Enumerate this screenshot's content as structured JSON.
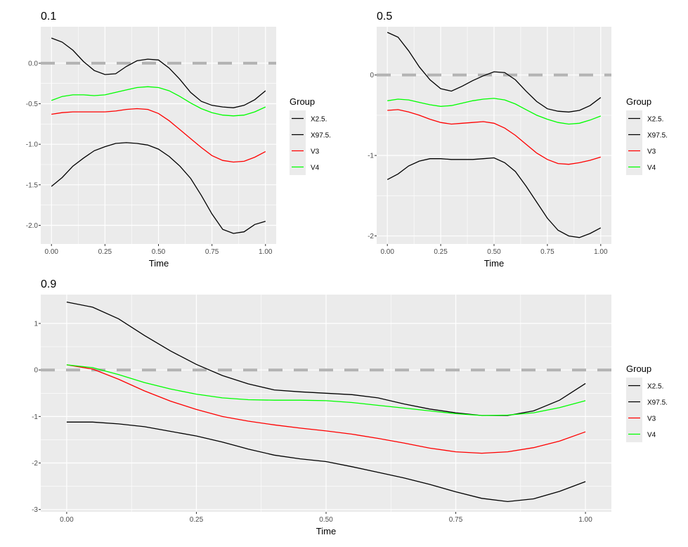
{
  "chart_data": [
    {
      "type": "line",
      "title": "0.1",
      "xlabel": "Time",
      "ylabel": "",
      "xlim": [
        -0.05,
        1.05
      ],
      "ylim": [
        -2.23,
        0.45
      ],
      "xticks": [
        0,
        0.25,
        0.5,
        0.75,
        1
      ],
      "xtick_labels": [
        "0.00",
        "0.25",
        "0.50",
        "0.75",
        "1.00"
      ],
      "yticks": [
        -2,
        -1.5,
        -1,
        -0.5,
        0
      ],
      "ytick_labels": [
        "-2.0",
        "-1.5",
        "-1.0",
        "-0.5",
        "0.0"
      ],
      "grid": true,
      "legend_position": "right",
      "legend_title": "Group",
      "reference_line": {
        "y": 0,
        "style": "dashed",
        "color": "#b3b3b3"
      },
      "series": [
        {
          "name": "X2.5.",
          "color": "#000000",
          "x": [
            0,
            0.05,
            0.1,
            0.15,
            0.2,
            0.25,
            0.3,
            0.35,
            0.4,
            0.45,
            0.5,
            0.55,
            0.6,
            0.65,
            0.7,
            0.75,
            0.8,
            0.85,
            0.9,
            0.95,
            1
          ],
          "values": [
            0.31,
            0.26,
            0.16,
            0.02,
            -0.09,
            -0.14,
            -0.13,
            -0.04,
            0.03,
            0.05,
            0.04,
            -0.06,
            -0.2,
            -0.36,
            -0.47,
            -0.52,
            -0.54,
            -0.55,
            -0.52,
            -0.45,
            -0.34
          ]
        },
        {
          "name": "X97.5.",
          "color": "#000000",
          "x": [
            0,
            0.05,
            0.1,
            0.15,
            0.2,
            0.25,
            0.3,
            0.35,
            0.4,
            0.45,
            0.5,
            0.55,
            0.6,
            0.65,
            0.7,
            0.75,
            0.8,
            0.85,
            0.9,
            0.95,
            1
          ],
          "values": [
            -1.52,
            -1.41,
            -1.27,
            -1.17,
            -1.08,
            -1.03,
            -0.99,
            -0.98,
            -0.99,
            -1.01,
            -1.06,
            -1.15,
            -1.27,
            -1.42,
            -1.63,
            -1.86,
            -2.05,
            -2.1,
            -2.08,
            -1.99,
            -1.95
          ]
        },
        {
          "name": "V3",
          "color": "#ff0000",
          "x": [
            0,
            0.05,
            0.1,
            0.15,
            0.2,
            0.25,
            0.3,
            0.35,
            0.4,
            0.45,
            0.5,
            0.55,
            0.6,
            0.65,
            0.7,
            0.75,
            0.8,
            0.85,
            0.9,
            0.95,
            1
          ],
          "values": [
            -0.63,
            -0.61,
            -0.6,
            -0.6,
            -0.6,
            -0.6,
            -0.59,
            -0.57,
            -0.56,
            -0.57,
            -0.62,
            -0.71,
            -0.82,
            -0.93,
            -1.04,
            -1.14,
            -1.2,
            -1.22,
            -1.21,
            -1.16,
            -1.09
          ]
        },
        {
          "name": "V4",
          "color": "#00ff00",
          "x": [
            0,
            0.05,
            0.1,
            0.15,
            0.2,
            0.25,
            0.3,
            0.35,
            0.4,
            0.45,
            0.5,
            0.55,
            0.6,
            0.65,
            0.7,
            0.75,
            0.8,
            0.85,
            0.9,
            0.95,
            1
          ],
          "values": [
            -0.46,
            -0.41,
            -0.39,
            -0.39,
            -0.4,
            -0.39,
            -0.36,
            -0.33,
            -0.3,
            -0.29,
            -0.3,
            -0.34,
            -0.41,
            -0.49,
            -0.56,
            -0.61,
            -0.64,
            -0.65,
            -0.64,
            -0.6,
            -0.54
          ]
        }
      ]
    },
    {
      "type": "line",
      "title": "0.5",
      "xlabel": "Time",
      "ylabel": "",
      "xlim": [
        -0.05,
        1.05
      ],
      "ylim": [
        -2.1,
        0.6
      ],
      "xticks": [
        0,
        0.25,
        0.5,
        0.75,
        1
      ],
      "xtick_labels": [
        "0.00",
        "0.25",
        "0.50",
        "0.75",
        "1.00"
      ],
      "yticks": [
        -2,
        -1,
        0
      ],
      "ytick_labels": [
        "-2",
        "-1",
        "0"
      ],
      "grid": true,
      "legend_position": "right",
      "legend_title": "Group",
      "reference_line": {
        "y": 0,
        "style": "dashed",
        "color": "#b3b3b3"
      },
      "series": [
        {
          "name": "X2.5.",
          "color": "#000000",
          "x": [
            0,
            0.05,
            0.1,
            0.15,
            0.2,
            0.25,
            0.3,
            0.35,
            0.4,
            0.45,
            0.5,
            0.55,
            0.6,
            0.65,
            0.7,
            0.75,
            0.8,
            0.85,
            0.9,
            0.95,
            1
          ],
          "values": [
            0.53,
            0.47,
            0.3,
            0.1,
            -0.06,
            -0.17,
            -0.2,
            -0.14,
            -0.07,
            -0.01,
            0.04,
            0.03,
            -0.06,
            -0.2,
            -0.33,
            -0.42,
            -0.45,
            -0.46,
            -0.44,
            -0.38,
            -0.28
          ]
        },
        {
          "name": "X97.5.",
          "color": "#000000",
          "x": [
            0,
            0.05,
            0.1,
            0.15,
            0.2,
            0.25,
            0.3,
            0.35,
            0.4,
            0.45,
            0.5,
            0.55,
            0.6,
            0.65,
            0.7,
            0.75,
            0.8,
            0.85,
            0.9,
            0.95,
            1
          ],
          "values": [
            -1.3,
            -1.23,
            -1.13,
            -1.07,
            -1.04,
            -1.04,
            -1.05,
            -1.05,
            -1.05,
            -1.04,
            -1.03,
            -1.09,
            -1.2,
            -1.38,
            -1.58,
            -1.78,
            -1.93,
            -2.0,
            -2.02,
            -1.97,
            -1.9
          ]
        },
        {
          "name": "V3",
          "color": "#ff0000",
          "x": [
            0,
            0.05,
            0.1,
            0.15,
            0.2,
            0.25,
            0.3,
            0.35,
            0.4,
            0.45,
            0.5,
            0.55,
            0.6,
            0.65,
            0.7,
            0.75,
            0.8,
            0.85,
            0.9,
            0.95,
            1
          ],
          "values": [
            -0.44,
            -0.43,
            -0.46,
            -0.5,
            -0.55,
            -0.59,
            -0.61,
            -0.6,
            -0.59,
            -0.58,
            -0.6,
            -0.66,
            -0.75,
            -0.86,
            -0.97,
            -1.05,
            -1.1,
            -1.11,
            -1.09,
            -1.06,
            -1.02
          ]
        },
        {
          "name": "V4",
          "color": "#00ff00",
          "x": [
            0,
            0.05,
            0.1,
            0.15,
            0.2,
            0.25,
            0.3,
            0.35,
            0.4,
            0.45,
            0.5,
            0.55,
            0.6,
            0.65,
            0.7,
            0.75,
            0.8,
            0.85,
            0.9,
            0.95,
            1
          ],
          "values": [
            -0.32,
            -0.3,
            -0.31,
            -0.34,
            -0.37,
            -0.39,
            -0.38,
            -0.35,
            -0.32,
            -0.3,
            -0.29,
            -0.31,
            -0.36,
            -0.43,
            -0.5,
            -0.55,
            -0.59,
            -0.61,
            -0.6,
            -0.56,
            -0.51
          ]
        }
      ]
    },
    {
      "type": "line",
      "title": "0.9",
      "xlabel": "Time",
      "ylabel": "",
      "xlim": [
        -0.05,
        1.05
      ],
      "ylim": [
        -3.05,
        1.62
      ],
      "xticks": [
        0,
        0.25,
        0.5,
        0.75,
        1
      ],
      "xtick_labels": [
        "0.00",
        "0.25",
        "0.50",
        "0.75",
        "1.00"
      ],
      "yticks": [
        -3,
        -2,
        -1,
        0,
        1
      ],
      "ytick_labels": [
        "-3",
        "-2",
        "-1",
        "0",
        "1"
      ],
      "grid": true,
      "legend_position": "right",
      "legend_title": "Group",
      "reference_line": {
        "y": 0,
        "style": "dashed",
        "color": "#b3b3b3"
      },
      "series": [
        {
          "name": "X2.5.",
          "color": "#000000",
          "x": [
            0,
            0.05,
            0.1,
            0.15,
            0.2,
            0.25,
            0.3,
            0.35,
            0.4,
            0.45,
            0.5,
            0.55,
            0.6,
            0.65,
            0.7,
            0.75,
            0.8,
            0.85,
            0.9,
            0.95,
            1
          ],
          "values": [
            1.46,
            1.35,
            1.1,
            0.74,
            0.41,
            0.12,
            -0.12,
            -0.3,
            -0.43,
            -0.47,
            -0.5,
            -0.53,
            -0.6,
            -0.73,
            -0.84,
            -0.92,
            -0.98,
            -0.98,
            -0.88,
            -0.65,
            -0.29
          ]
        },
        {
          "name": "X97.5.",
          "color": "#000000",
          "x": [
            0,
            0.05,
            0.1,
            0.15,
            0.2,
            0.25,
            0.3,
            0.35,
            0.4,
            0.45,
            0.5,
            0.55,
            0.6,
            0.65,
            0.7,
            0.75,
            0.8,
            0.85,
            0.9,
            0.95,
            1
          ],
          "values": [
            -1.12,
            -1.12,
            -1.16,
            -1.22,
            -1.32,
            -1.42,
            -1.55,
            -1.7,
            -1.83,
            -1.91,
            -1.97,
            -2.08,
            -2.2,
            -2.32,
            -2.46,
            -2.62,
            -2.76,
            -2.83,
            -2.77,
            -2.61,
            -2.4
          ]
        },
        {
          "name": "V3",
          "color": "#ff0000",
          "x": [
            0,
            0.05,
            0.1,
            0.15,
            0.2,
            0.25,
            0.3,
            0.35,
            0.4,
            0.45,
            0.5,
            0.55,
            0.6,
            0.65,
            0.7,
            0.75,
            0.8,
            0.85,
            0.9,
            0.95,
            1
          ],
          "values": [
            0.11,
            0.02,
            -0.2,
            -0.45,
            -0.67,
            -0.85,
            -1.0,
            -1.1,
            -1.18,
            -1.25,
            -1.31,
            -1.38,
            -1.47,
            -1.57,
            -1.68,
            -1.76,
            -1.79,
            -1.76,
            -1.67,
            -1.53,
            -1.33
          ]
        },
        {
          "name": "V4",
          "color": "#00ff00",
          "x": [
            0,
            0.05,
            0.1,
            0.15,
            0.2,
            0.25,
            0.3,
            0.35,
            0.4,
            0.45,
            0.5,
            0.55,
            0.6,
            0.65,
            0.7,
            0.75,
            0.8,
            0.85,
            0.9,
            0.95,
            1
          ],
          "values": [
            0.11,
            0.05,
            -0.1,
            -0.27,
            -0.41,
            -0.52,
            -0.6,
            -0.64,
            -0.65,
            -0.65,
            -0.66,
            -0.7,
            -0.76,
            -0.82,
            -0.88,
            -0.94,
            -0.98,
            -0.97,
            -0.92,
            -0.81,
            -0.66
          ]
        }
      ]
    }
  ]
}
